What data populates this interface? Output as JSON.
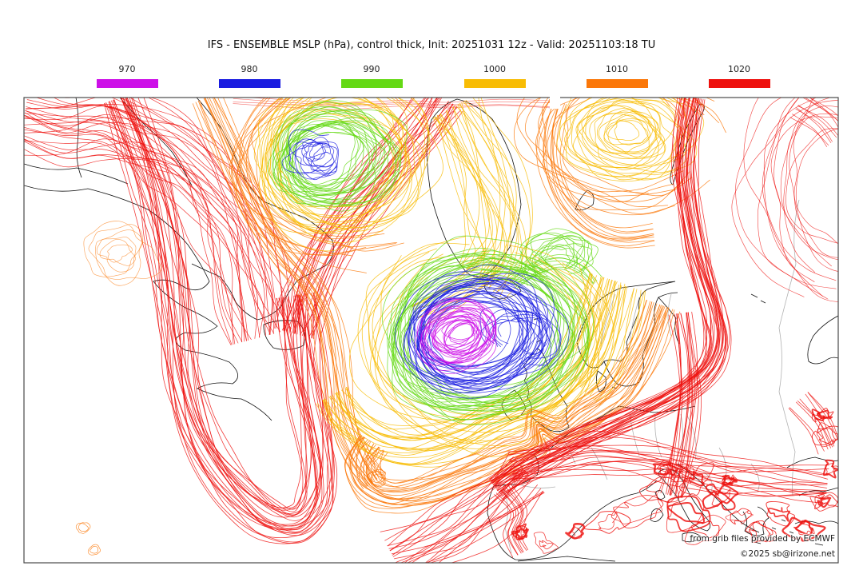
{
  "title": "IFS - ENSEMBLE MSLP (hPa), control thick, Init: 20251031 12z - Valid: 20251103:18 TU",
  "legend": {
    "unit": "hPa",
    "levels": [
      {
        "value": "970",
        "color": "#cd0fe8"
      },
      {
        "value": "980",
        "color": "#1a1ce0"
      },
      {
        "value": "990",
        "color": "#64d914"
      },
      {
        "value": "1000",
        "color": "#f8bc04"
      },
      {
        "value": "1010",
        "color": "#fb7708"
      },
      {
        "value": "1020",
        "color": "#ee100d"
      }
    ]
  },
  "attribution": {
    "source_line": "from grib files provided by ECMWF",
    "copyright_line": "©2025 sb@irizone.net"
  },
  "chart_data": {
    "type": "contour-spaghetti",
    "model": "IFS - ENSEMBLE",
    "variable": "MSLP",
    "unit": "hPa",
    "init": "20251031 12z",
    "valid": "20251103:18 TU",
    "levels": [
      970,
      980,
      990,
      1000,
      1010,
      1020
    ]
  }
}
